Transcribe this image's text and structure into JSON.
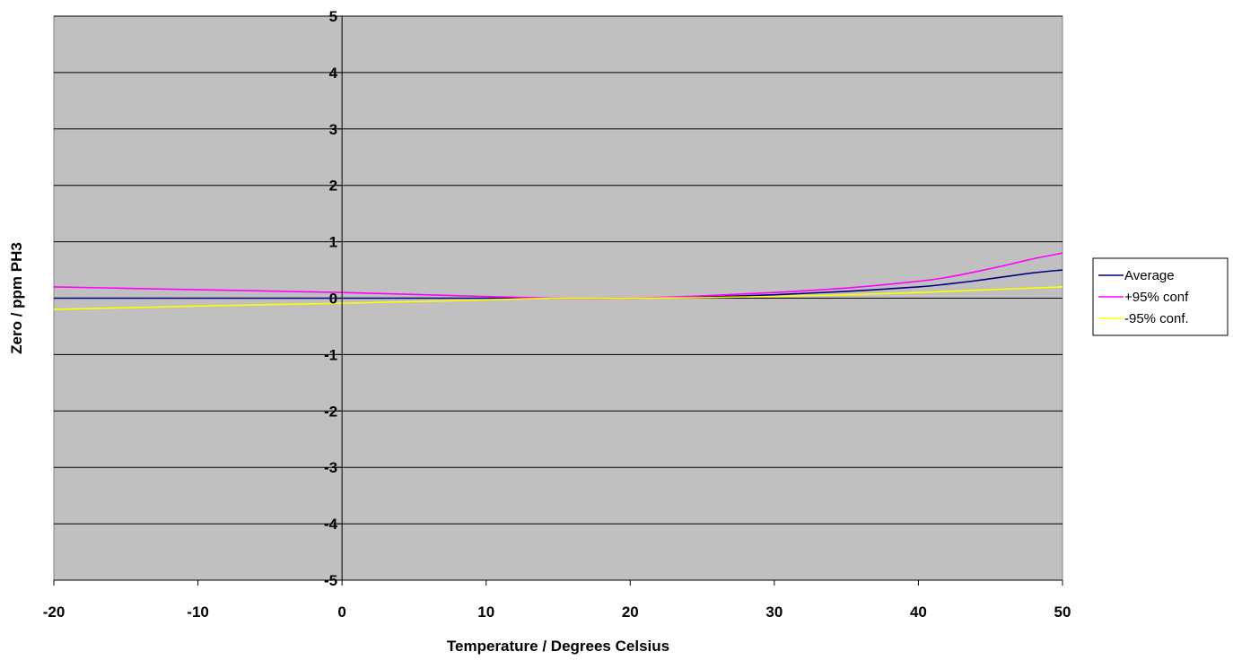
{
  "chart_data": {
    "type": "line",
    "title": "",
    "xlabel": "Temperature / Degrees  Celsius",
    "ylabel": "Zero  / ppm PH3",
    "xlim": [
      -20,
      50
    ],
    "ylim": [
      -5,
      5
    ],
    "x_ticks": [
      "-20",
      "-10",
      "0",
      "10",
      "20",
      "30",
      "40",
      "50"
    ],
    "y_ticks": [
      "5",
      "4",
      "3",
      "2",
      "1",
      "0",
      "-1",
      "-2",
      "-3",
      "-4",
      "-5"
    ],
    "grid": "horizontal",
    "legend_position": "right",
    "plot_background": "#c0c0c0",
    "x": [
      -20,
      -10,
      0,
      10,
      15,
      20,
      25,
      30,
      35,
      40,
      42,
      44,
      46,
      48,
      50
    ],
    "series": [
      {
        "name": "Average",
        "color": "#000080",
        "values": [
          0.0,
          0.0,
          0.0,
          0.0,
          0.0,
          0.0,
          0.02,
          0.06,
          0.12,
          0.2,
          0.25,
          0.31,
          0.38,
          0.45,
          0.5
        ]
      },
      {
        "name": "+95% conf",
        "color": "#ff00ff",
        "values": [
          0.2,
          0.15,
          0.1,
          0.03,
          0.0,
          0.0,
          0.04,
          0.1,
          0.18,
          0.3,
          0.37,
          0.47,
          0.58,
          0.7,
          0.8
        ]
      },
      {
        "name": "-95% conf.",
        "color": "#ffff00",
        "values": [
          -0.2,
          -0.14,
          -0.09,
          -0.03,
          0.0,
          0.0,
          0.01,
          0.03,
          0.06,
          0.1,
          0.12,
          0.14,
          0.16,
          0.18,
          0.2
        ]
      }
    ]
  }
}
